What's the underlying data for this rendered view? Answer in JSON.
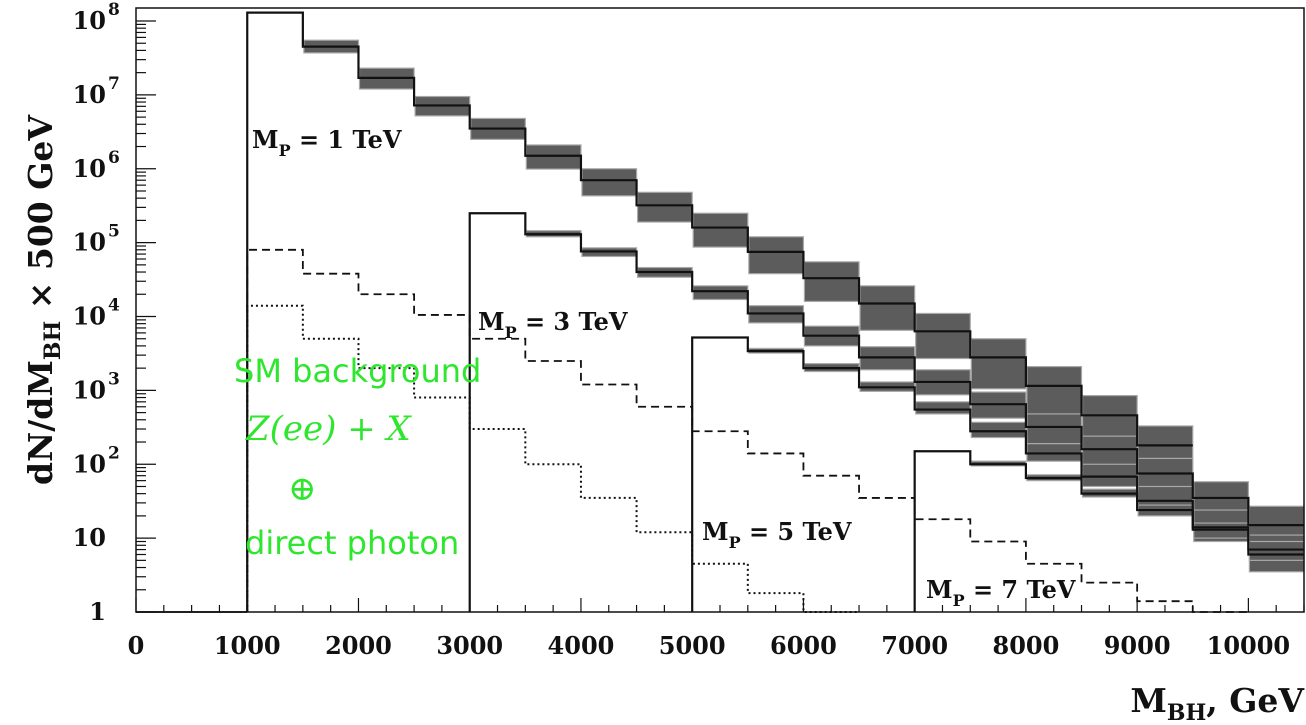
{
  "chart_data": {
    "type": "histogram",
    "y_scale": "log",
    "xlim": [
      0,
      10500
    ],
    "ylim": [
      1,
      150000000
    ],
    "bin_width": 500,
    "x_ticks": [
      "0",
      "1000",
      "2000",
      "3000",
      "4000",
      "5000",
      "6000",
      "7000",
      "8000",
      "9000",
      "10000"
    ],
    "y_ticks": [
      {
        "value": 1,
        "base": "1",
        "exp": ""
      },
      {
        "value": 10,
        "base": "10",
        "exp": ""
      },
      {
        "value": 100,
        "base": "10",
        "exp": "2"
      },
      {
        "value": 1000,
        "base": "10",
        "exp": "3"
      },
      {
        "value": 10000,
        "base": "10",
        "exp": "4"
      },
      {
        "value": 100000,
        "base": "10",
        "exp": "5"
      },
      {
        "value": 1000000,
        "base": "10",
        "exp": "6"
      },
      {
        "value": 10000000,
        "base": "10",
        "exp": "7"
      },
      {
        "value": 100000000,
        "base": "10",
        "exp": "8"
      }
    ],
    "xlabel": {
      "main": "M",
      "sub": "BH",
      "rest": ", GeV"
    },
    "ylabel": {
      "pre": "dN/dM",
      "sub": "BH",
      "post": " × 500 GeV"
    },
    "series": [
      {
        "name": "M_P = 1 TeV",
        "label": {
          "main": "M",
          "sub": "P",
          "rest": " = 1 TeV"
        },
        "style": "solid-band",
        "x_start": 1000,
        "values": [
          130000000,
          45000000,
          17000000,
          7200000,
          3500000,
          1500000,
          700000,
          320000,
          160000,
          75000,
          33000,
          15000,
          6300,
          2800,
          1150,
          460,
          180
        ],
        "band_low": [
          130000000,
          37000000,
          12000000,
          5200000,
          2500000,
          990000,
          430000,
          190000,
          87000,
          38000,
          16000,
          6500,
          2700,
          1050,
          410,
          150,
          55
        ],
        "band_high": [
          130000000,
          55000000,
          23000000,
          9500000,
          4800000,
          2100000,
          1000000,
          480000,
          250000,
          120000,
          55000,
          26000,
          11000,
          5000,
          2100,
          850,
          330
        ]
      },
      {
        "name": "M_P = 3 TeV",
        "label": {
          "main": "M",
          "sub": "P",
          "rest": " = 3 TeV"
        },
        "style": "solid-band",
        "x_start": 3000,
        "values": [
          250000,
          130000,
          76000,
          40000,
          22000,
          11000,
          5500,
          2800,
          1300,
          650,
          320,
          160,
          75,
          35,
          15
        ],
        "band_low": [
          250000,
          120000,
          65000,
          34000,
          17000,
          8200,
          4000,
          1900,
          870,
          420,
          190,
          88,
          38,
          16,
          6
        ],
        "band_high": [
          250000,
          145000,
          85000,
          46000,
          26000,
          14000,
          7400,
          3900,
          1900,
          950,
          480,
          240,
          120,
          58,
          27
        ]
      },
      {
        "name": "M_P = 5 TeV",
        "label": {
          "main": "M",
          "sub": "P",
          "rest": " = 5 TeV"
        },
        "style": "solid-band",
        "x_start": 5000,
        "values": [
          5200,
          3400,
          2000,
          1100,
          550,
          280,
          140,
          68,
          32,
          14,
          6
        ],
        "band_low": [
          5200,
          3200,
          1800,
          970,
          480,
          230,
          110,
          50,
          22,
          9,
          3.5
        ],
        "band_high": [
          5200,
          3700,
          2300,
          1300,
          700,
          370,
          190,
          100,
          50,
          24,
          11
        ]
      },
      {
        "name": "M_P = 7 TeV",
        "label": {
          "main": "M",
          "sub": "P",
          "rest": " = 7 TeV"
        },
        "style": "solid-band",
        "x_start": 7000,
        "values": [
          150,
          100,
          65,
          40,
          24,
          13,
          7
        ],
        "band_low": [
          150,
          95,
          60,
          36,
          20,
          10,
          5
        ],
        "band_high": [
          150,
          110,
          72,
          46,
          28,
          16,
          9
        ]
      },
      {
        "name": "Z(ee)+X",
        "style": "dashed",
        "x_start": 1000,
        "values": [
          80000,
          38000,
          20000,
          10500,
          5000,
          2500,
          1200,
          600,
          280,
          140,
          70,
          35,
          18,
          9,
          4.5,
          2.5,
          1.4,
          0.8
        ]
      },
      {
        "name": "direct photon",
        "style": "dotted",
        "x_start": 1000,
        "values": [
          14000,
          5000,
          2000,
          800,
          300,
          100,
          35,
          12,
          4.5,
          1.8,
          0.7
        ]
      }
    ],
    "legend": {
      "line1": "SM background",
      "line2": "Z(ee) + X",
      "line3": "⊕",
      "line4": "direct photon",
      "color": "#2ee62e"
    },
    "band_color": "#5c5c5c",
    "band_edge_color": "#a8a8a8",
    "line_color": "#111111"
  }
}
